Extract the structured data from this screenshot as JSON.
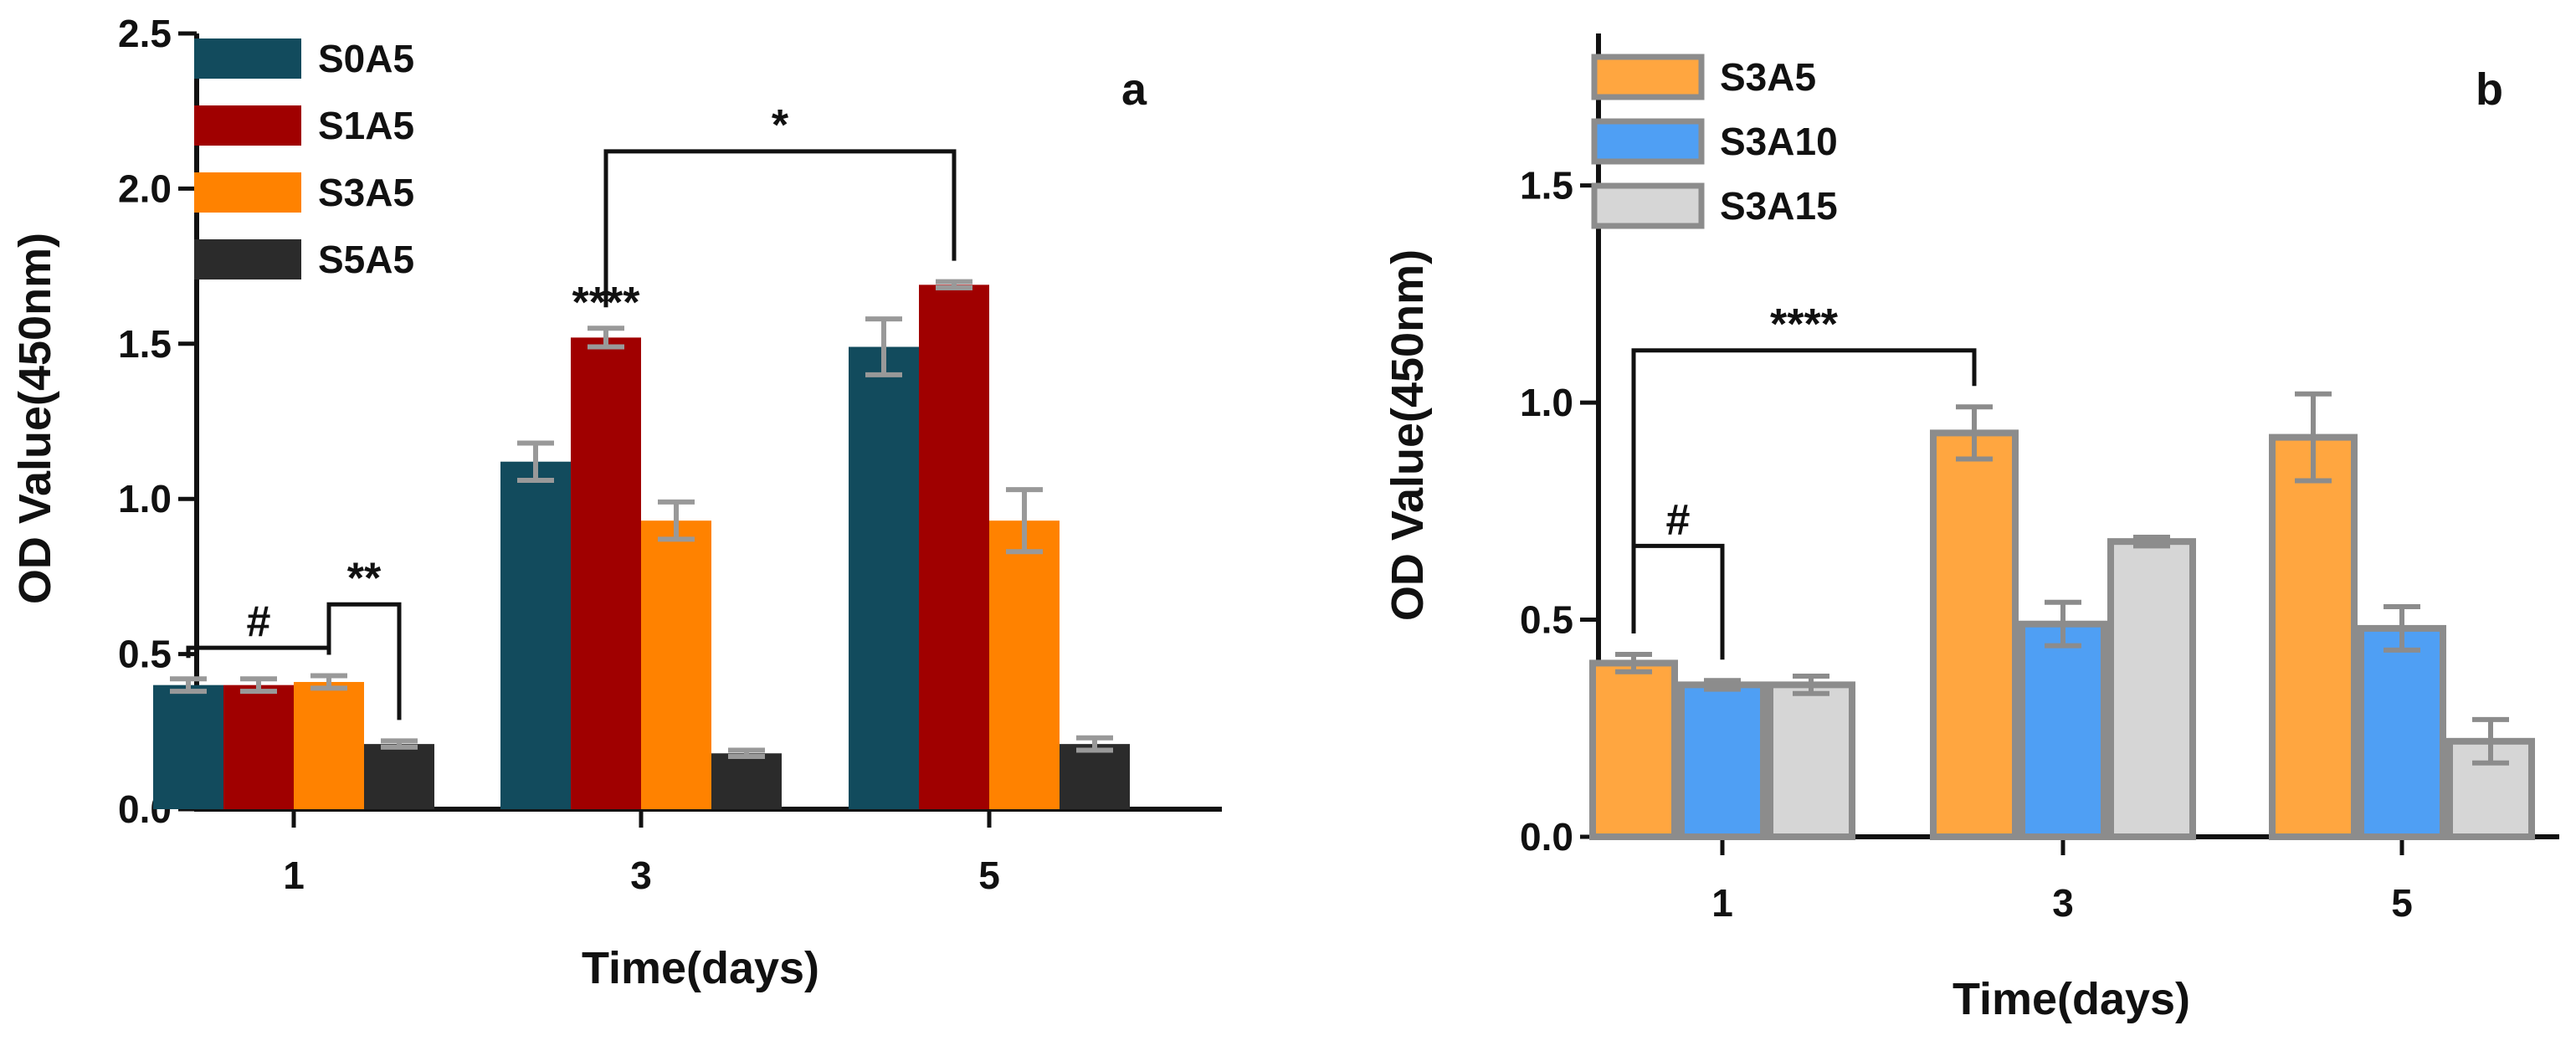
{
  "chart_data": [
    {
      "panel_label": "a",
      "type": "bar",
      "title": "",
      "xlabel": "Time(days)",
      "ylabel": "OD Value(450nm)",
      "ylim": [
        0,
        2.5
      ],
      "yticks": [
        0.0,
        0.5,
        1.0,
        1.5,
        2.0,
        2.5
      ],
      "ytick_labels": [
        "0.0",
        "0.5",
        "1.0",
        "1.5",
        "2.0",
        "2.5"
      ],
      "categories": [
        "1",
        "3",
        "5"
      ],
      "legend_position": "top-left",
      "series": [
        {
          "name": "S0A5",
          "color": "#124b5d",
          "values": [
            0.4,
            1.12,
            1.49
          ],
          "errors": [
            0.02,
            0.06,
            0.09
          ]
        },
        {
          "name": "S1A5",
          "color": "#a00000",
          "values": [
            0.4,
            1.52,
            1.69
          ],
          "errors": [
            0.02,
            0.03,
            0.01
          ]
        },
        {
          "name": "S3A5",
          "color": "#ff8200",
          "values": [
            0.41,
            0.93,
            0.93
          ],
          "errors": [
            0.02,
            0.06,
            0.1
          ]
        },
        {
          "name": "S5A5",
          "color": "#2b2b2b",
          "values": [
            0.21,
            0.18,
            0.21
          ],
          "errors": [
            0.01,
            0.01,
            0.02
          ]
        }
      ],
      "annotations": [
        {
          "text": "#",
          "group": 0,
          "from_series": 0,
          "to_series": 2,
          "y": 0.52
        },
        {
          "text": "**",
          "group": 0,
          "from_series": 2,
          "to_series": 3,
          "y": 0.66
        },
        {
          "text": "****",
          "group": 1,
          "series": 1,
          "y": 1.64
        },
        {
          "text": "*",
          "group": 1,
          "from_series": 1,
          "group_to": 2,
          "to_series": 1,
          "y": 2.12
        }
      ]
    },
    {
      "panel_label": "b",
      "type": "bar",
      "title": "",
      "xlabel": "Time(days)",
      "ylabel": "OD Value(450nm)",
      "ylim": [
        0,
        1.85
      ],
      "yticks": [
        0.0,
        0.5,
        1.0,
        1.5
      ],
      "ytick_labels": [
        "0.0",
        "0.5",
        "1.0",
        "1.5"
      ],
      "categories": [
        "1",
        "3",
        "5"
      ],
      "legend_position": "top-left",
      "series": [
        {
          "name": "S3A5",
          "color": "#ffa640",
          "values": [
            0.4,
            0.93,
            0.92
          ],
          "errors": [
            0.02,
            0.06,
            0.1
          ]
        },
        {
          "name": "S3A10",
          "color": "#4f9ff4",
          "values": [
            0.35,
            0.49,
            0.48
          ],
          "errors": [
            0.01,
            0.05,
            0.05
          ]
        },
        {
          "name": "S3A15",
          "color": "#d6d6d6",
          "values": [
            0.35,
            0.68,
            0.22
          ],
          "errors": [
            0.02,
            0.01,
            0.05
          ]
        }
      ],
      "annotations": [
        {
          "text": "#",
          "group": 0,
          "from_series": 0,
          "to_series": 1,
          "y": 0.67
        },
        {
          "text": "****",
          "group": 0,
          "from_series": 0,
          "group_to": 1,
          "to_series": 0,
          "y": 1.12
        }
      ]
    }
  ]
}
